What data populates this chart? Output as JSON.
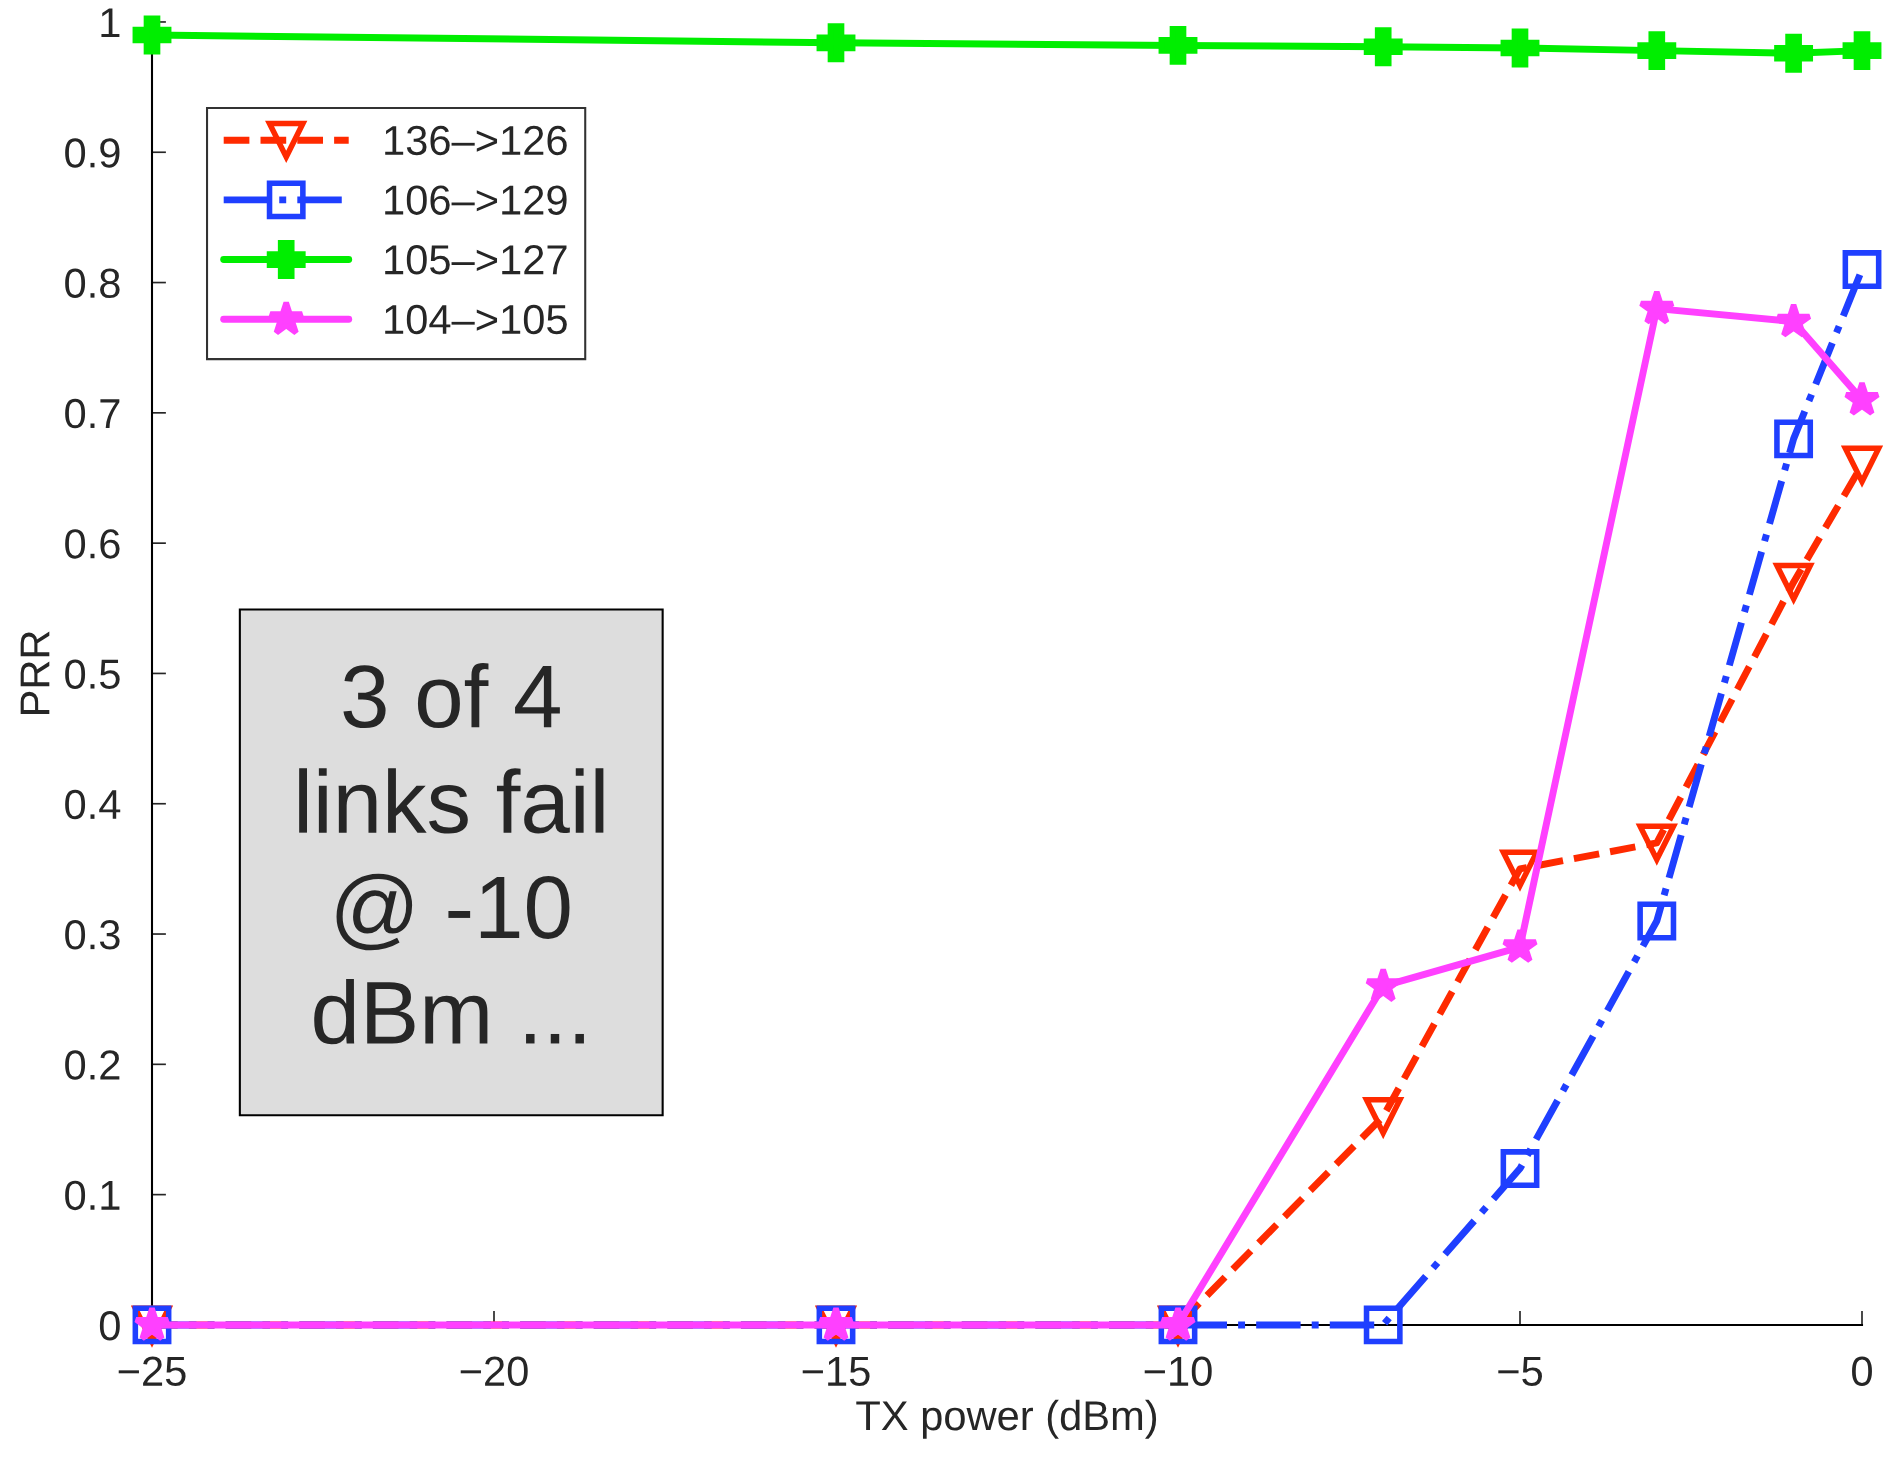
{
  "chart_data": {
    "type": "line",
    "x": [
      -25,
      -15,
      -10,
      -7,
      -5,
      -3,
      -1,
      0
    ],
    "series": [
      {
        "name": "136–>126",
        "color": "#ff2a00",
        "marker": "triangle",
        "line_style": "dashed",
        "values": [
          0,
          0,
          0,
          0.16,
          0.35,
          0.37,
          0.57,
          0.66
        ]
      },
      {
        "name": "106–>129",
        "color": "#1f3fff",
        "marker": "square",
        "line_style": "dashdot",
        "values": [
          0,
          0,
          0,
          0,
          0.12,
          0.31,
          0.68,
          0.81
        ]
      },
      {
        "name": "105–>127",
        "color": "#00ee00",
        "marker": "cross",
        "line_style": "solid",
        "values": [
          0.99,
          0.984,
          0.982,
          0.981,
          0.98,
          0.978,
          0.976,
          0.978
        ]
      },
      {
        "name": "104–>105",
        "color": "#ff40ff",
        "marker": "star",
        "line_style": "solid",
        "values": [
          0,
          0,
          0,
          0.26,
          0.29,
          0.78,
          0.77,
          0.71
        ]
      }
    ],
    "xlabel": "TX power (dBm)",
    "ylabel": "PRR",
    "xlim": [
      -25,
      0
    ],
    "ylim": [
      0,
      1
    ],
    "xticks": [
      {
        "value": -25,
        "label": "−25"
      },
      {
        "value": -20,
        "label": "−20"
      },
      {
        "value": -15,
        "label": "−15"
      },
      {
        "value": -10,
        "label": "−10"
      },
      {
        "value": -5,
        "label": "−5"
      },
      0
    ],
    "yticks": [
      0,
      0.1,
      0.2,
      0.3,
      0.4,
      0.5,
      0.6,
      0.7,
      0.8,
      0.9,
      1
    ],
    "annotations": [
      "3 of 4\nlinks fail\n@ -10\ndBm ..."
    ],
    "grid": false,
    "legend": "top left"
  }
}
